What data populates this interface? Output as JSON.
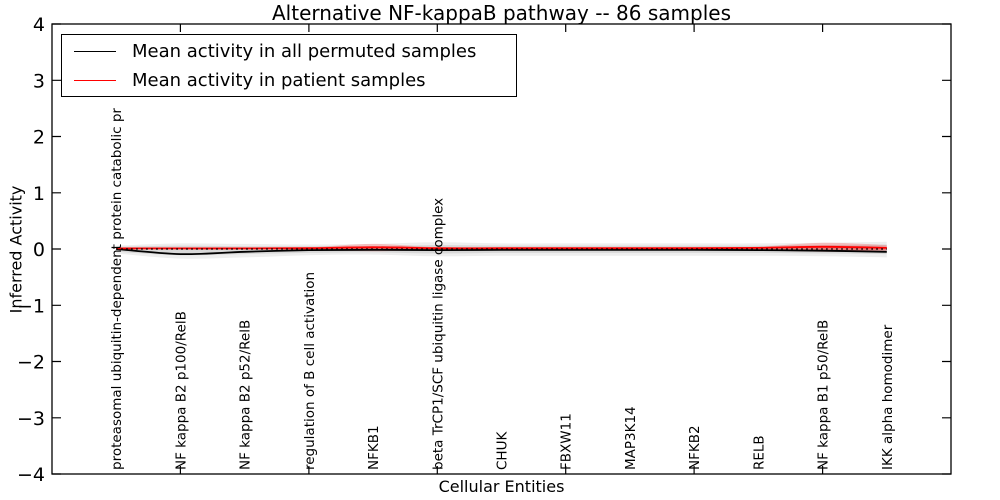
{
  "legend": {
    "position": "upper left",
    "items": [
      {
        "label": "Mean activity in all permuted samples",
        "color": "#000000"
      },
      {
        "label": "Mean activity in patient samples",
        "color": "#ff0000"
      }
    ]
  },
  "chart_data": {
    "type": "line",
    "title": "Alternative NF-kappaB pathway -- 86 samples",
    "xlabel": "Cellular Entities",
    "ylabel": "Inferred Activity",
    "xlim": [
      0,
      14
    ],
    "ylim": [
      -4,
      4
    ],
    "yticks": [
      -4,
      -3,
      -2,
      -1,
      0,
      1,
      2,
      3,
      4
    ],
    "xticks_unlabeled": [
      2,
      4,
      6,
      8,
      10,
      12
    ],
    "grid": false,
    "legend_position": "upper left",
    "x": [
      1,
      2,
      3,
      4,
      5,
      6,
      7,
      8,
      9,
      10,
      11,
      12,
      13
    ],
    "categories": [
      "proteasomal ubiquitin-dependent protein catabolic pr",
      "NF kappa B2 p100/RelB",
      "NF kappa B2 p52/RelB",
      "regulation of B cell activation",
      "NFKB1",
      "beta TrCP1/SCF ubiquitin ligase complex",
      "CHUK",
      "FBXW11",
      "MAP3K14",
      "NFKB2",
      "RELB",
      "NF kappa B1 p50/RelB",
      "IKK alpha homodimer"
    ],
    "series": [
      {
        "name": "Mean activity in all permuted samples",
        "color": "#000000",
        "line_style": "solid",
        "width": 1.8,
        "values": [
          0.0,
          -0.09,
          -0.05,
          -0.02,
          -0.015,
          -0.02,
          -0.015,
          -0.015,
          -0.015,
          -0.015,
          -0.02,
          -0.03,
          -0.05
        ]
      },
      {
        "name": "Mean activity in patient samples",
        "color": "#ff0000",
        "line_style": "solid",
        "width": 1.8,
        "values": [
          0.01,
          0.01,
          0.01,
          0.015,
          0.03,
          0.015,
          0.015,
          0.015,
          0.015,
          0.015,
          0.02,
          0.04,
          0.02
        ]
      },
      {
        "name": "zero reference",
        "color": "#000000",
        "line_style": "dotted",
        "width": 1.4,
        "values": [
          0,
          0,
          0,
          0,
          0,
          0,
          0,
          0,
          0,
          0,
          0,
          0,
          0
        ]
      }
    ],
    "bands": [
      {
        "name": "permuted spread outer",
        "color": "rgba(0,0,0,0.065)",
        "upper": [
          0.06,
          0.1,
          0.09,
          0.08,
          0.09,
          0.12,
          0.1,
          0.1,
          0.1,
          0.1,
          0.1,
          0.11,
          0.13
        ],
        "lower": [
          -0.08,
          -0.17,
          -0.15,
          -0.11,
          -0.1,
          -0.13,
          -0.12,
          -0.12,
          -0.12,
          -0.12,
          -0.12,
          -0.13,
          -0.15
        ]
      },
      {
        "name": "permuted spread inner",
        "color": "rgba(0,0,0,0.09)",
        "upper": [
          0.04,
          0.06,
          0.05,
          0.05,
          0.05,
          0.07,
          0.06,
          0.06,
          0.06,
          0.06,
          0.06,
          0.07,
          0.08
        ],
        "lower": [
          -0.05,
          -0.11,
          -0.09,
          -0.07,
          -0.06,
          -0.08,
          -0.07,
          -0.07,
          -0.07,
          -0.07,
          -0.07,
          -0.08,
          -0.09
        ]
      },
      {
        "name": "patient spread outer",
        "color": "rgba(255,0,0,0.20)",
        "upper": [
          0.015,
          0.015,
          0.02,
          0.03,
          0.09,
          0.03,
          0.025,
          0.025,
          0.025,
          0.03,
          0.04,
          0.11,
          0.07
        ],
        "lower": [
          -0.01,
          -0.01,
          -0.01,
          -0.015,
          -0.04,
          -0.015,
          -0.015,
          -0.015,
          -0.015,
          -0.015,
          -0.02,
          -0.05,
          -0.03
        ]
      },
      {
        "name": "patient spread inner",
        "color": "rgba(255,0,0,0.28)",
        "upper": [
          0.01,
          0.01,
          0.012,
          0.02,
          0.05,
          0.02,
          0.018,
          0.018,
          0.018,
          0.02,
          0.025,
          0.06,
          0.04
        ],
        "lower": [
          -0.005,
          -0.005,
          -0.007,
          -0.01,
          -0.02,
          -0.01,
          -0.01,
          -0.01,
          -0.01,
          -0.01,
          -0.012,
          -0.03,
          -0.02
        ]
      }
    ]
  }
}
